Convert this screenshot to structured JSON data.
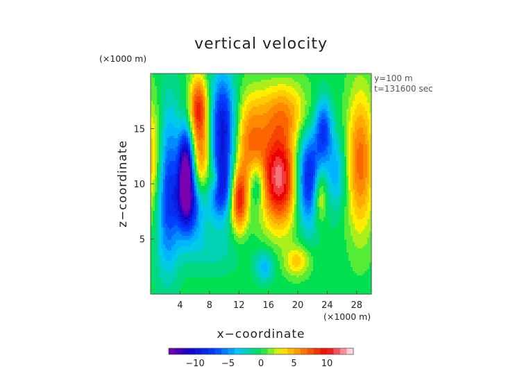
{
  "chart_data": {
    "type": "heatmap",
    "title": "vertical velocity",
    "xlabel": "x−coordinate",
    "ylabel": "z−coordinate",
    "x_unit": "(×1000 m)",
    "z_unit": "(×1000 m)",
    "annotations": [
      "y=100 m",
      "t=131600 sec"
    ],
    "xlim": [
      0,
      30
    ],
    "ylim": [
      0,
      20
    ],
    "x_ticks": [
      4,
      8,
      12,
      16,
      20,
      24,
      28
    ],
    "y_ticks": [
      5,
      10,
      15
    ],
    "x_tick_labels": [
      "4",
      "8",
      "12",
      "16",
      "20",
      "24",
      "28"
    ],
    "y_tick_labels": [
      "5",
      "10",
      "15"
    ],
    "colorbar": {
      "min": -14,
      "max": 14,
      "step": 1,
      "ticks": [
        -10,
        -5,
        0,
        5,
        10
      ],
      "tick_labels": [
        "−10",
        "−5",
        "0",
        "5",
        "10"
      ]
    },
    "features": [
      {
        "x": 0.5,
        "z": 12.0,
        "value": 6,
        "sx": 1.3,
        "sz": 4.0
      },
      {
        "x": 2.2,
        "z": 10.0,
        "value": -9,
        "sx": 1.2,
        "sz": 5.0
      },
      {
        "x": 4.8,
        "z": 11.0,
        "value": -15,
        "sx": 0.7,
        "sz": 2.6
      },
      {
        "x": 5.5,
        "z": 8.0,
        "value": -8,
        "sx": 1.5,
        "sz": 2.0
      },
      {
        "x": 6.5,
        "z": 17.0,
        "value": 8,
        "sx": 0.9,
        "sz": 2.0
      },
      {
        "x": 7.0,
        "z": 12.0,
        "value": 6,
        "sx": 1.0,
        "sz": 3.0
      },
      {
        "x": 9.8,
        "z": 15.0,
        "value": -10,
        "sx": 1.2,
        "sz": 3.5
      },
      {
        "x": 9.5,
        "z": 9.5,
        "value": -7,
        "sx": 1.1,
        "sz": 2.0
      },
      {
        "x": 8.8,
        "z": 10.5,
        "value": 4,
        "sx": 0.5,
        "sz": 0.9
      },
      {
        "x": 12.0,
        "z": 8.5,
        "value": 9,
        "sx": 0.8,
        "sz": 2.0
      },
      {
        "x": 13.5,
        "z": 13.5,
        "value": 6,
        "sx": 1.5,
        "sz": 3.0
      },
      {
        "x": 14.5,
        "z": 10.0,
        "value": -5,
        "sx": 0.8,
        "sz": 1.6
      },
      {
        "x": 17.5,
        "z": 10.5,
        "value": 12,
        "sx": 1.8,
        "sz": 3.0
      },
      {
        "x": 18.0,
        "z": 16.5,
        "value": 5,
        "sx": 2.5,
        "sz": 2.0
      },
      {
        "x": 21.5,
        "z": 10.5,
        "value": -10,
        "sx": 1.3,
        "sz": 3.0
      },
      {
        "x": 23.5,
        "z": 15.0,
        "value": -7,
        "sx": 0.8,
        "sz": 2.0
      },
      {
        "x": 23.0,
        "z": 9.0,
        "value": 6,
        "sx": 0.7,
        "sz": 1.8
      },
      {
        "x": 25.2,
        "z": 11.0,
        "value": -4,
        "sx": 1.0,
        "sz": 2.5
      },
      {
        "x": 28.5,
        "z": 12.0,
        "value": 7,
        "sx": 1.3,
        "sz": 4.5
      },
      {
        "x": 15.5,
        "z": 2.5,
        "value": -4,
        "sx": 0.9,
        "sz": 1.0
      },
      {
        "x": 20.0,
        "z": 3.0,
        "value": 4,
        "sx": 1.2,
        "sz": 1.0
      },
      {
        "x": 8.0,
        "z": 4.0,
        "value": -2,
        "sx": 3.0,
        "sz": 1.5
      }
    ]
  },
  "colors": {
    "purple": "#7a00b0",
    "deep_blue": "#1200c8",
    "blue": "#0040ff",
    "cyan": "#00c8ff",
    "green": "#00e050",
    "light_green": "#66ee33",
    "yellow": "#ffee00",
    "orange": "#ff8800",
    "red": "#ee0000",
    "pink": "#ffaab8",
    "white": "#ffffff"
  }
}
